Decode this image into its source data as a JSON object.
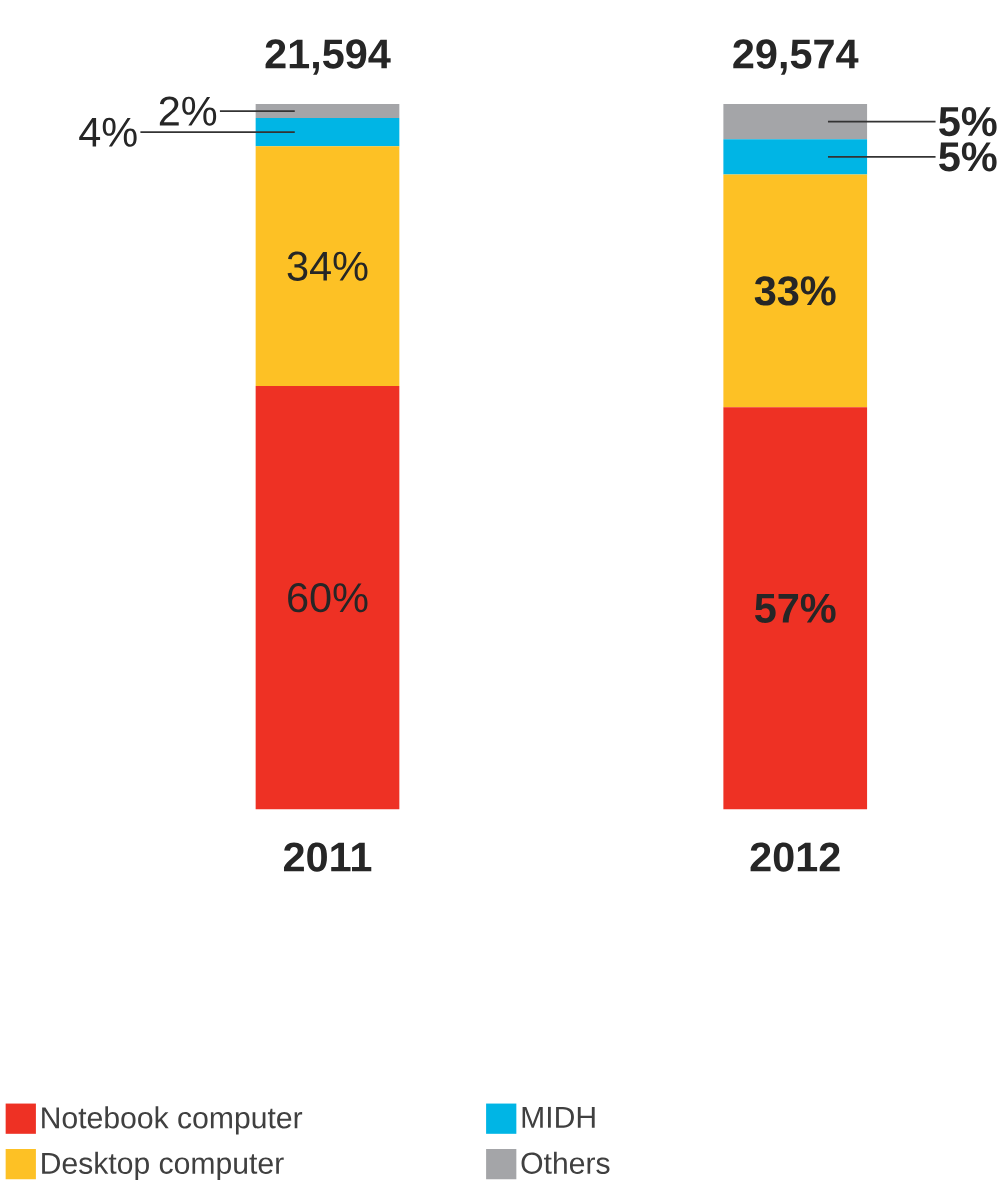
{
  "chart_data": {
    "type": "bar",
    "stacked": true,
    "categories": [
      "2011",
      "2012"
    ],
    "ylim": [
      0,
      100
    ],
    "tick_labels": "x",
    "legend": "bottom",
    "data_labels": true,
    "annotations": [
      {
        "text": "21,594",
        "x": "2011",
        "y": 100
      },
      {
        "text": "29,574",
        "x": "2012",
        "y": 100
      }
    ],
    "series": [
      {
        "name": "Notebook computer",
        "color": "#ee3124",
        "values": [
          60,
          57
        ],
        "value_labels": [
          "60%",
          "57%"
        ]
      },
      {
        "name": "Desktop computer",
        "color": "#fdc125",
        "values": [
          34,
          33
        ],
        "value_labels": [
          "34%",
          "33%"
        ]
      },
      {
        "name": "MIDH",
        "color": "#00b5e5",
        "values": [
          4,
          5
        ],
        "value_labels": [
          "4%",
          "5%"
        ]
      },
      {
        "name": "Others",
        "color": "#a4a5a8",
        "values": [
          2,
          5
        ],
        "value_labels": [
          "2%",
          "5%"
        ]
      }
    ]
  }
}
